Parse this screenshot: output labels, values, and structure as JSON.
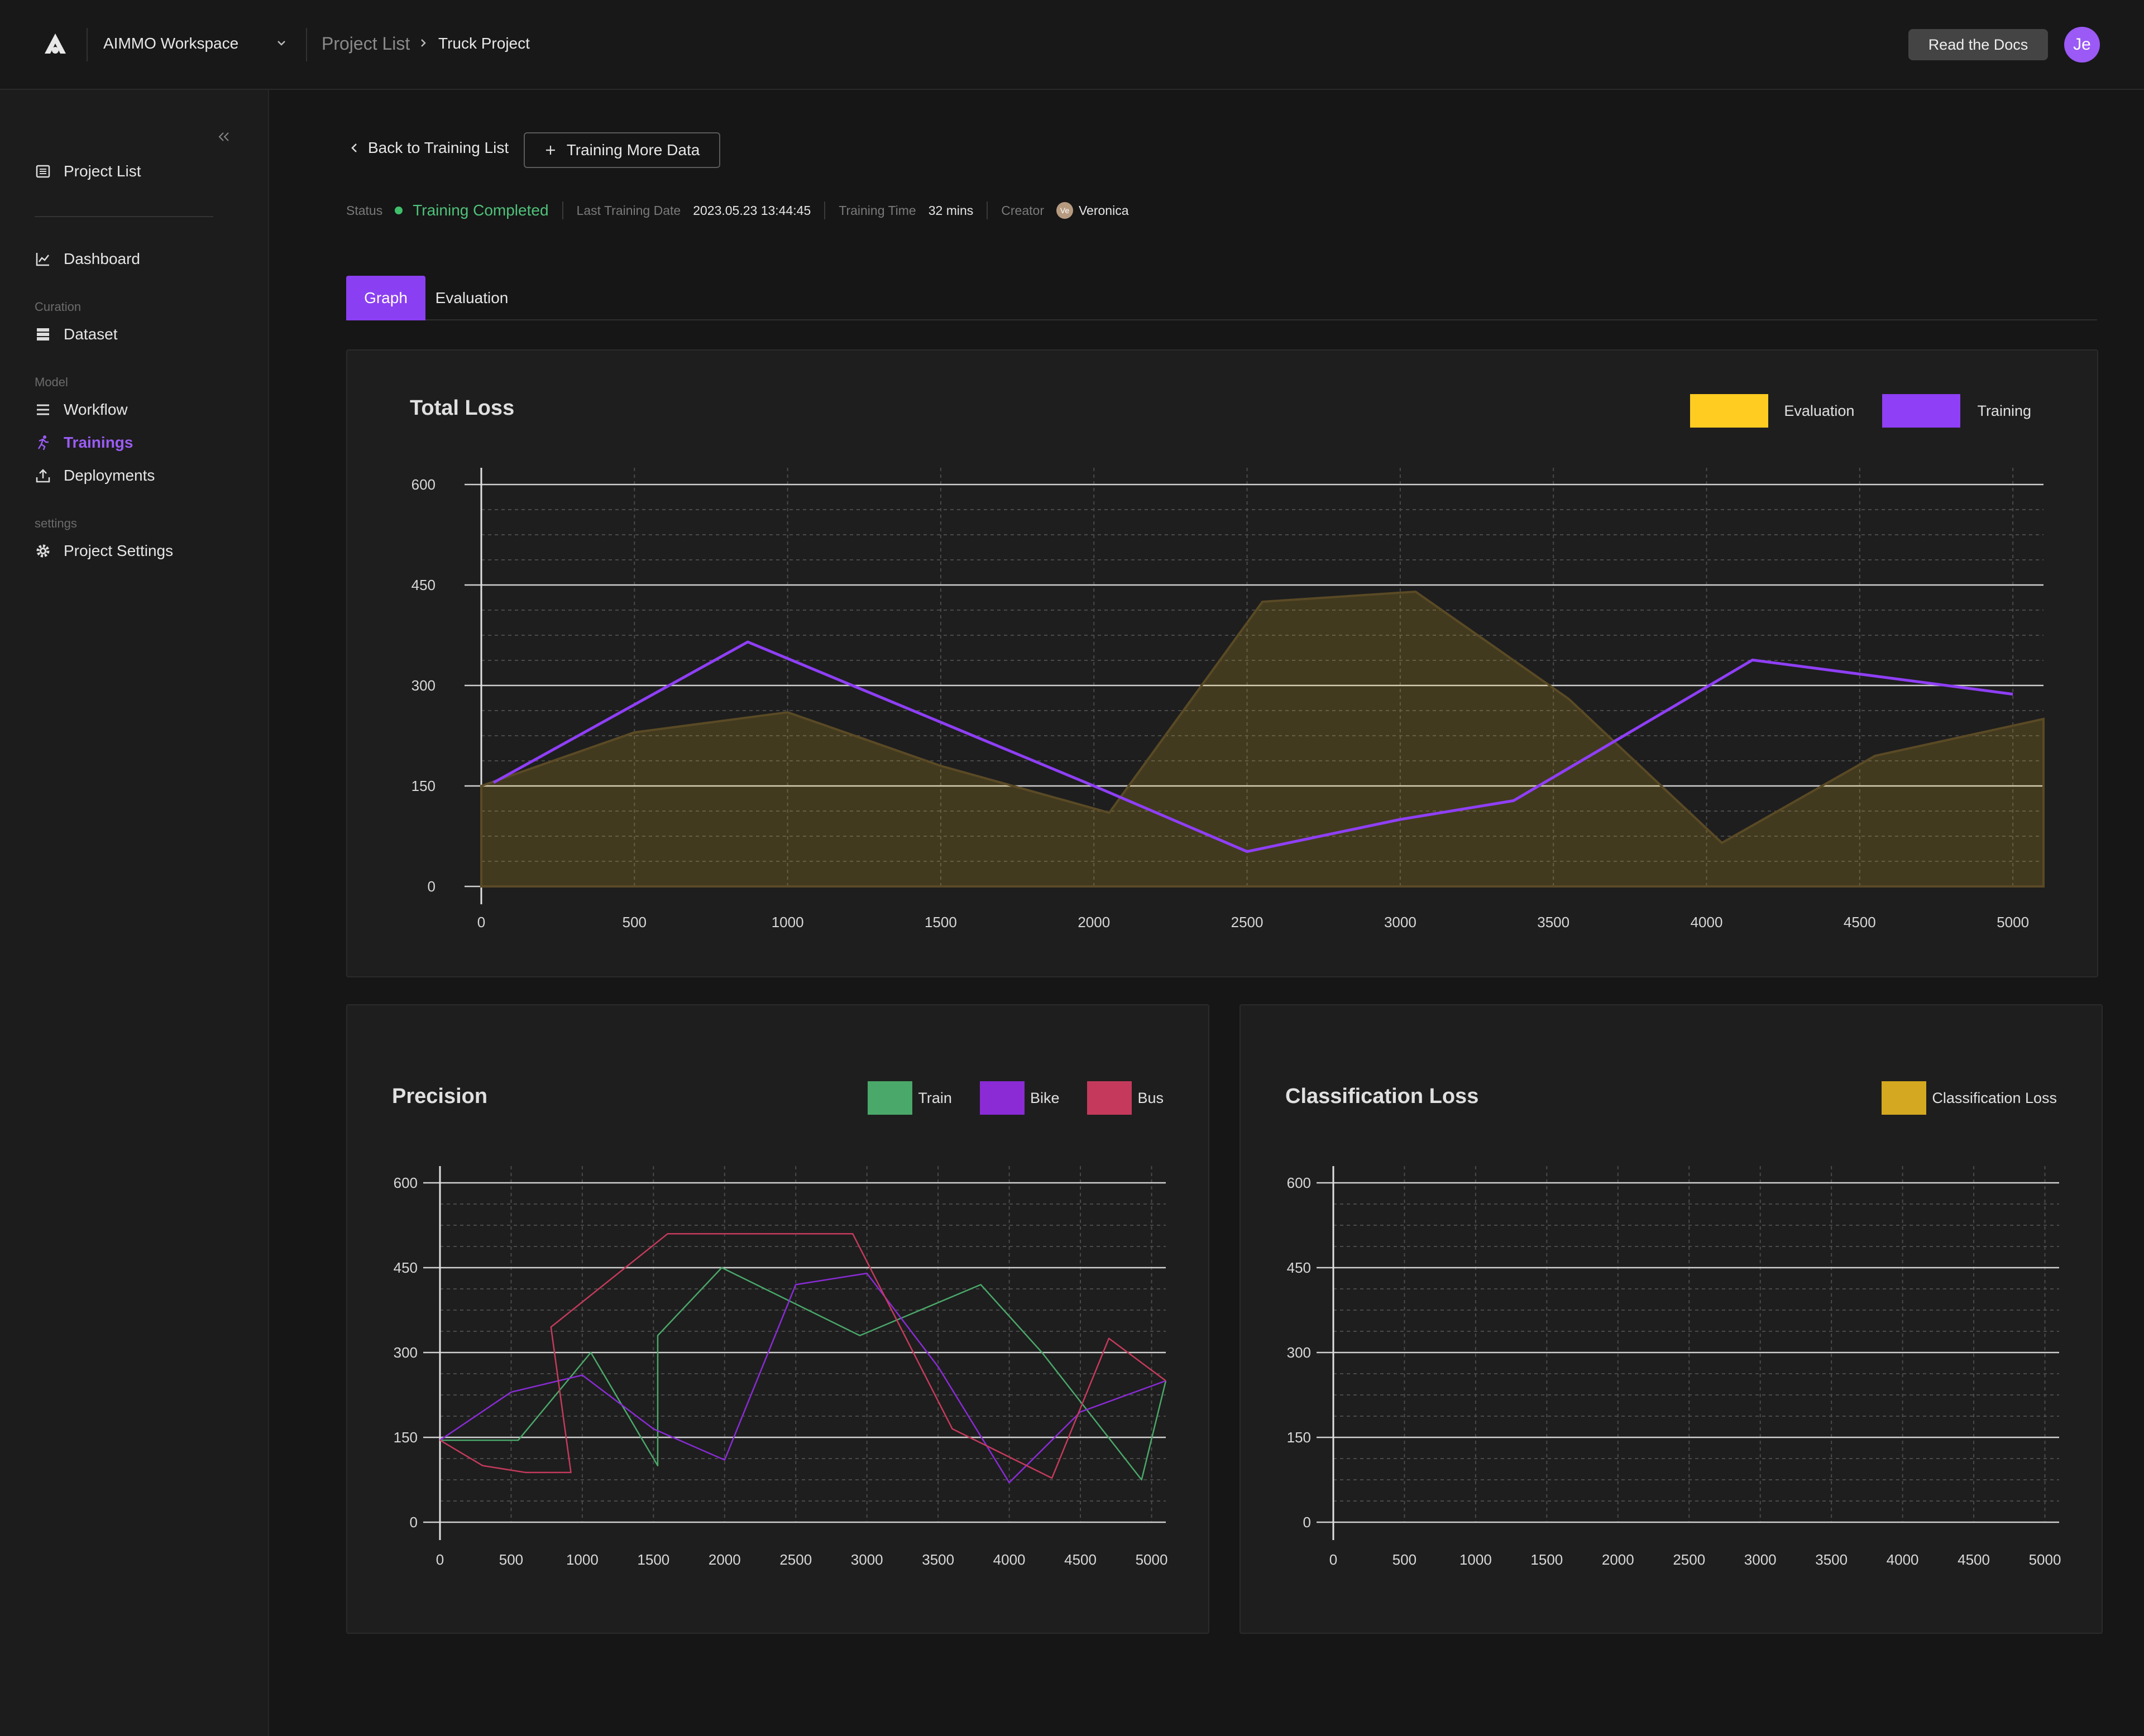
{
  "topbar": {
    "workspace": "AIMMO Workspace",
    "breadcrumb_root": "Project List",
    "breadcrumb_current": "Truck Project",
    "docs_label": "Read the Docs",
    "avatar_initials": "Je"
  },
  "sidebar": {
    "project_list": "Project List",
    "dashboard": "Dashboard",
    "group_curation": "Curation",
    "dataset": "Dataset",
    "group_model": "Model",
    "workflow": "Workflow",
    "trainings": "Trainings",
    "deployments": "Deployments",
    "group_settings": "settings",
    "project_settings": "Project Settings"
  },
  "header": {
    "back_label": "Back to Training List",
    "more_label": "Training More Data",
    "status_label": "Status",
    "status_value": "Training Completed",
    "last_date_label": "Last Training Date",
    "last_date_value": "2023.05.23 13:44:45",
    "time_label": "Training Time",
    "time_value": "32 mins",
    "creator_label": "Creator",
    "creator_initials": "Ve",
    "creator_name": "Veronica"
  },
  "tabs": {
    "graph": "Graph",
    "evaluation": "Evaluation"
  },
  "colors": {
    "accent": "#8b3ff2",
    "evaluation": "#ffcc22",
    "training": "#8f3ff6",
    "train": "#4aa86a",
    "bike": "#8a2bd6",
    "bus": "#c53a5c",
    "classification": "#d4a820",
    "status_green": "#4fc27a"
  },
  "chart_data": [
    {
      "id": "total-loss",
      "type": "line",
      "title": "Total Loss",
      "xlabel": "",
      "ylabel": "",
      "xlim": [
        0,
        5100
      ],
      "ylim": [
        0,
        600
      ],
      "xticks": [
        0,
        500,
        1000,
        1500,
        2000,
        2500,
        3000,
        3500,
        4000,
        4500,
        5000
      ],
      "yticks": [
        0,
        150,
        300,
        450,
        600
      ],
      "grid": true,
      "legend_position": "top-right",
      "series": [
        {
          "name": "Evaluation",
          "color": "#ffcc22",
          "style": "area",
          "x": [
            0,
            500,
            1000,
            1500,
            2050,
            2550,
            3050,
            3550,
            4050,
            4550,
            5100
          ],
          "y": [
            150,
            230,
            260,
            180,
            110,
            425,
            440,
            280,
            65,
            195,
            250
          ]
        },
        {
          "name": "Training",
          "color": "#8f3ff6",
          "style": "line",
          "x": [
            40,
            870,
            2000,
            2500,
            3000,
            3370,
            4150,
            5000
          ],
          "y": [
            155,
            365,
            150,
            52,
            100,
            128,
            338,
            287
          ]
        }
      ]
    },
    {
      "id": "precision",
      "type": "line",
      "title": "Precision",
      "xlabel": "",
      "ylabel": "",
      "xlim": [
        0,
        5100
      ],
      "ylim": [
        0,
        600
      ],
      "xticks": [
        0,
        500,
        1000,
        1500,
        2000,
        2500,
        3000,
        3500,
        4000,
        4500,
        5000
      ],
      "yticks": [
        0,
        150,
        300,
        450,
        600
      ],
      "grid": true,
      "legend_position": "top-right",
      "series": [
        {
          "name": "Train",
          "color": "#4aa86a",
          "x": [
            0,
            550,
            1060,
            1530,
            1530,
            1980,
            2950,
            3800,
            4230,
            4930,
            5100
          ],
          "y": [
            145,
            145,
            300,
            100,
            330,
            450,
            330,
            420,
            300,
            75,
            250
          ]
        },
        {
          "name": "Bike",
          "color": "#8a2bd6",
          "x": [
            0,
            500,
            1000,
            1500,
            2000,
            2500,
            3000,
            3500,
            4000,
            4500,
            5100
          ],
          "y": [
            145,
            230,
            260,
            165,
            110,
            420,
            440,
            275,
            70,
            195,
            250
          ]
        },
        {
          "name": "Bus",
          "color": "#c53a5c",
          "x": [
            0,
            300,
            600,
            920,
            780,
            1600,
            2900,
            3600,
            4300,
            4700,
            5100
          ],
          "y": [
            145,
            100,
            88,
            88,
            345,
            510,
            510,
            165,
            78,
            325,
            250
          ]
        }
      ]
    },
    {
      "id": "classification-loss",
      "type": "line",
      "title": "Classification Loss",
      "xlabel": "",
      "ylabel": "",
      "xlim": [
        0,
        5100
      ],
      "ylim": [
        0,
        600
      ],
      "xticks": [
        0,
        500,
        1000,
        1500,
        2000,
        2500,
        3000,
        3500,
        4000,
        4500,
        5000
      ],
      "yticks": [
        0,
        150,
        300,
        450,
        600
      ],
      "grid": true,
      "legend_position": "top-right",
      "series": [
        {
          "name": "Classification Loss",
          "color": "#d4a820",
          "x": [],
          "y": []
        }
      ]
    }
  ]
}
